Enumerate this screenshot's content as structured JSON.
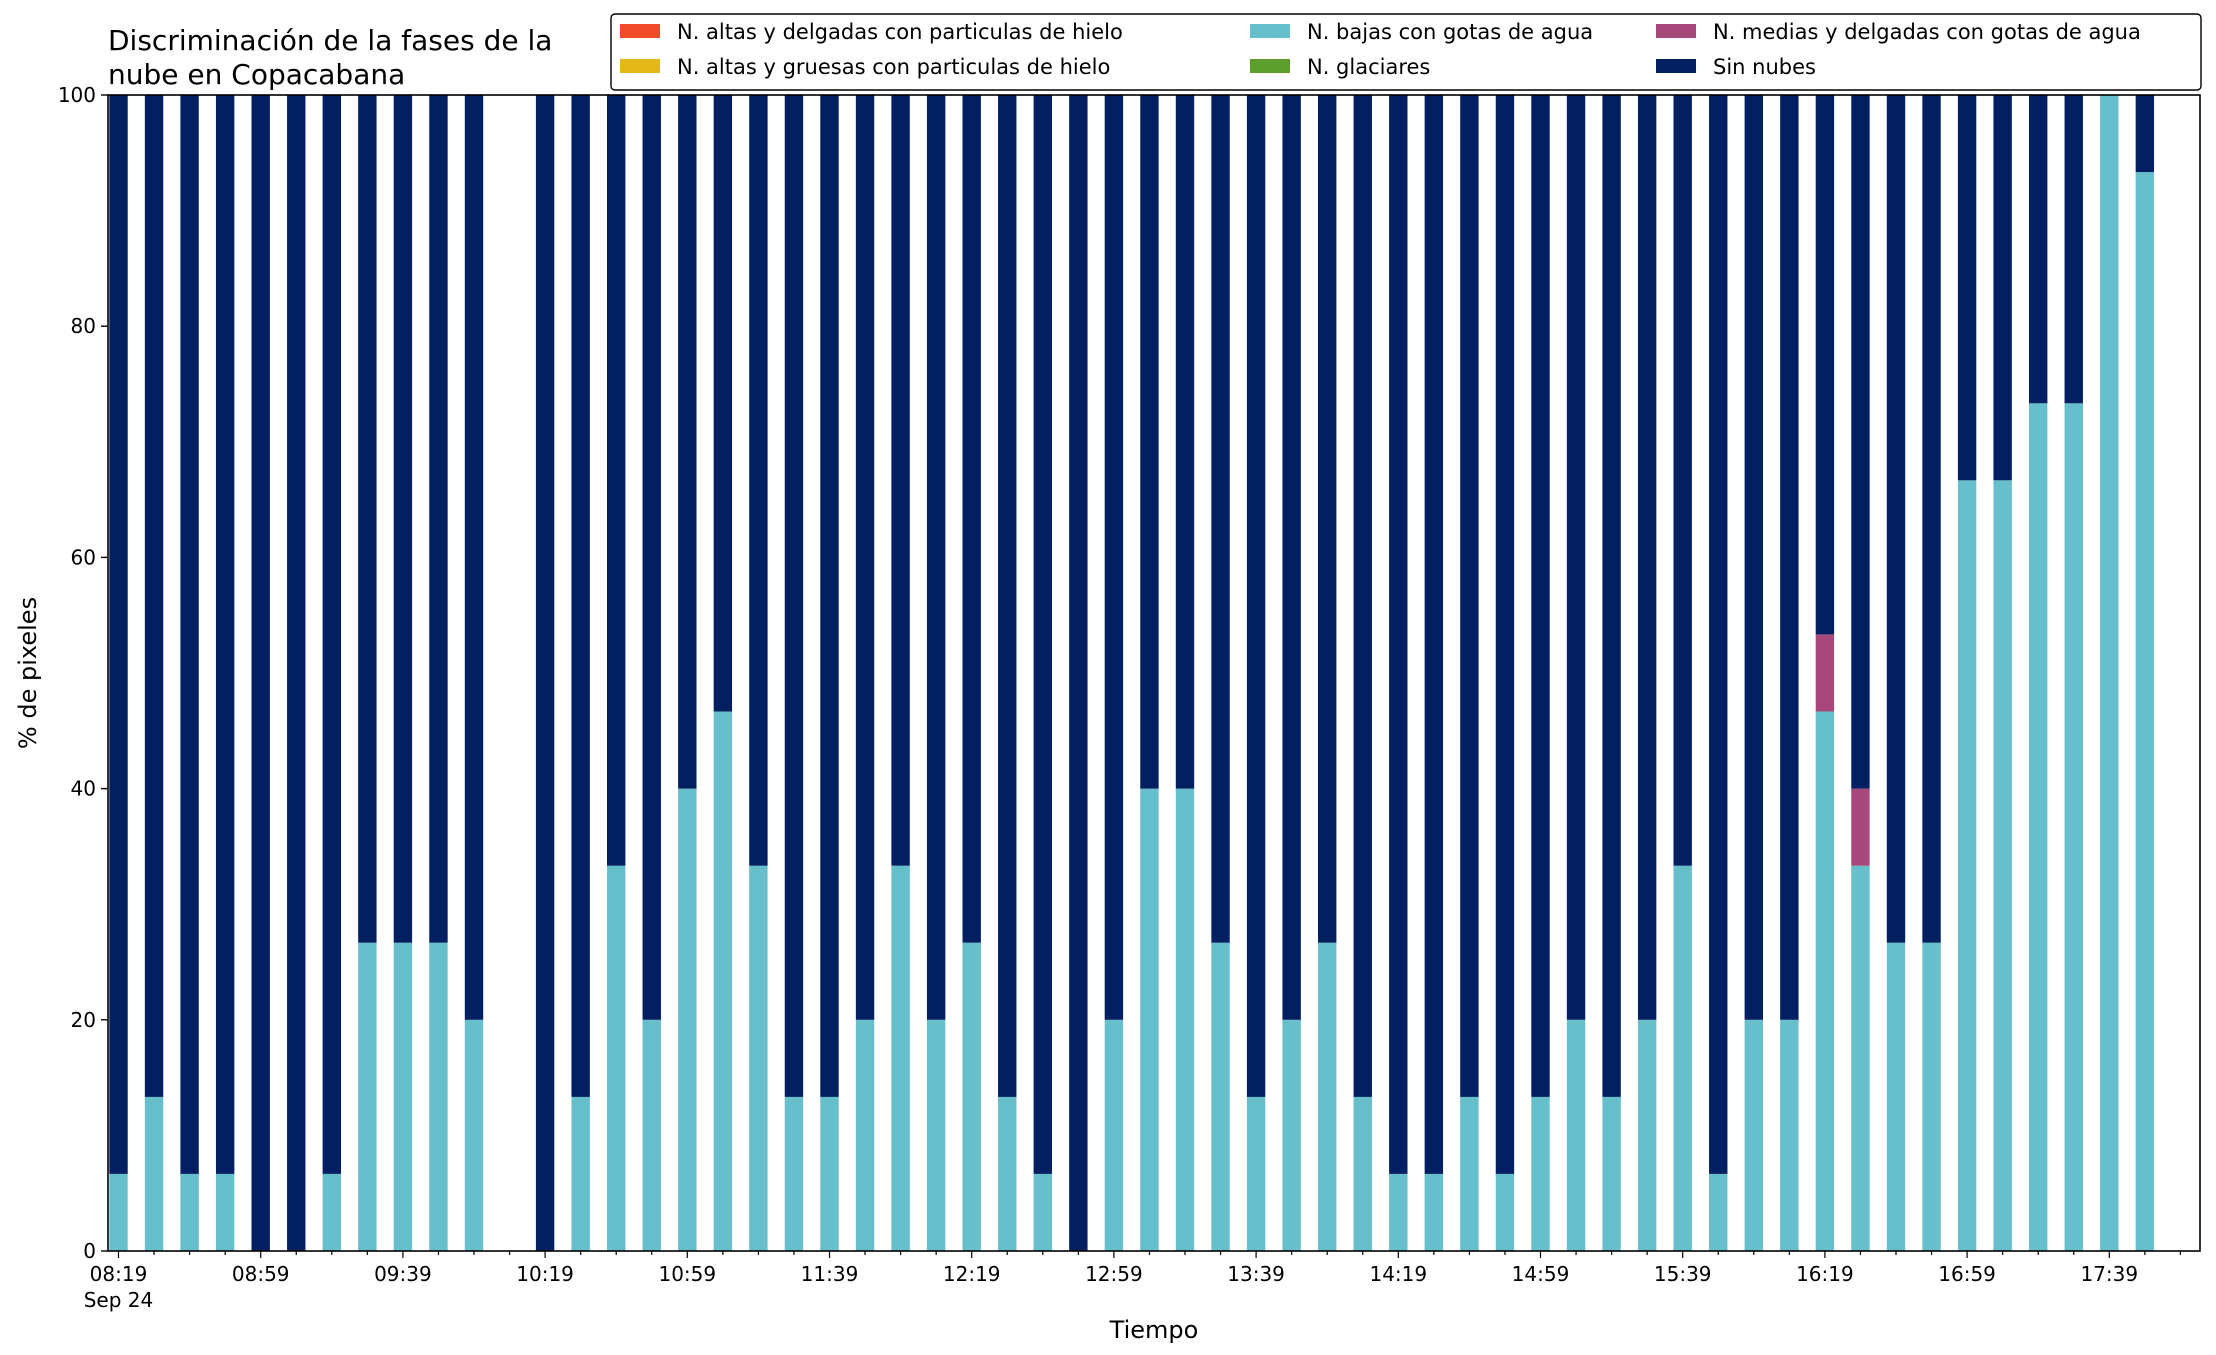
{
  "chart_data": {
    "type": "bar",
    "stacked": true,
    "title": "Discriminación de la fases de la\nnube en Copacabana",
    "xlabel": "Tiempo",
    "ylabel": "% de pixeles",
    "ylim": [
      0,
      100
    ],
    "yticks": [
      0,
      20,
      40,
      60,
      80,
      100
    ],
    "x_start": "08:19",
    "x_step_minutes": 10,
    "x_count": 58,
    "x_date_label": "Sep 24",
    "xtick_labels": [
      "08:19",
      "08:59",
      "09:39",
      "10:19",
      "10:59",
      "11:39",
      "12:19",
      "12:59",
      "13:39",
      "14:19",
      "14:59",
      "15:39",
      "16:19",
      "16:59",
      "17:39"
    ],
    "xtick_every": 4,
    "missing_times": [
      "10:09"
    ],
    "legend_position": "top-right",
    "series": [
      {
        "name": "N. altas y delgadas con particulas de hielo",
        "color": "#f04a2a",
        "values": [
          0,
          0,
          0,
          0,
          0,
          0,
          0,
          0,
          0,
          0,
          0,
          0,
          0,
          0,
          0,
          0,
          0,
          0,
          0,
          0,
          0,
          0,
          0,
          0,
          0,
          0,
          0,
          0,
          0,
          0,
          0,
          0,
          0,
          0,
          0,
          0,
          0,
          0,
          0,
          0,
          0,
          0,
          0,
          0,
          0,
          0,
          0,
          0,
          0,
          0,
          0,
          0,
          0,
          0,
          0,
          0,
          0,
          0
        ]
      },
      {
        "name": "N. altas y gruesas con particulas de hielo",
        "color": "#e5b81a",
        "values": [
          0,
          0,
          0,
          0,
          0,
          0,
          0,
          0,
          0,
          0,
          0,
          0,
          0,
          0,
          0,
          0,
          0,
          0,
          0,
          0,
          0,
          0,
          0,
          0,
          0,
          0,
          0,
          0,
          0,
          0,
          0,
          0,
          0,
          0,
          0,
          0,
          0,
          0,
          0,
          0,
          0,
          0,
          0,
          0,
          0,
          0,
          0,
          0,
          0,
          0,
          0,
          0,
          0,
          0,
          0,
          0,
          0,
          0
        ]
      },
      {
        "name": "N. bajas con gotas de agua",
        "color": "#66bfcb",
        "values": [
          6.67,
          13.33,
          6.67,
          6.67,
          0,
          0,
          6.67,
          26.67,
          26.67,
          26.67,
          20,
          0,
          0,
          13.33,
          33.33,
          20,
          40,
          46.67,
          33.33,
          13.33,
          13.33,
          20,
          33.33,
          20,
          26.67,
          13.33,
          6.67,
          0,
          20,
          40,
          40,
          26.67,
          13.33,
          20,
          26.67,
          13.33,
          6.67,
          6.67,
          13.33,
          6.67,
          13.33,
          20,
          13.33,
          20,
          33.33,
          6.67,
          20,
          20,
          46.67,
          33.33,
          26.67,
          26.67,
          66.67,
          66.67,
          73.33,
          73.33,
          100,
          93.33
        ]
      },
      {
        "name": "N. glaciares",
        "color": "#5e9e2e",
        "values": [
          0,
          0,
          0,
          0,
          0,
          0,
          0,
          0,
          0,
          0,
          0,
          0,
          0,
          0,
          0,
          0,
          0,
          0,
          0,
          0,
          0,
          0,
          0,
          0,
          0,
          0,
          0,
          0,
          0,
          0,
          0,
          0,
          0,
          0,
          0,
          0,
          0,
          0,
          0,
          0,
          0,
          0,
          0,
          0,
          0,
          0,
          0,
          0,
          0,
          0,
          0,
          0,
          0,
          0,
          0,
          0,
          0,
          0
        ]
      },
      {
        "name": "N. medias y delgadas con gotas de agua",
        "color": "#a6497a",
        "values": [
          0,
          0,
          0,
          0,
          0,
          0,
          0,
          0,
          0,
          0,
          0,
          0,
          0,
          0,
          0,
          0,
          0,
          0,
          0,
          0,
          0,
          0,
          0,
          0,
          0,
          0,
          0,
          0,
          0,
          0,
          0,
          0,
          0,
          0,
          0,
          0,
          0,
          0,
          0,
          0,
          0,
          0,
          0,
          0,
          0,
          0,
          0,
          0,
          6.67,
          6.67,
          0,
          0,
          0,
          0,
          0,
          0,
          0,
          0
        ]
      },
      {
        "name": "Sin nubes",
        "color": "#022061",
        "values": [
          93.33,
          86.67,
          93.33,
          93.33,
          100,
          100,
          93.33,
          73.33,
          73.33,
          73.33,
          80,
          0,
          100,
          86.67,
          66.67,
          80,
          60,
          53.33,
          66.67,
          86.67,
          86.67,
          80,
          66.67,
          80,
          73.33,
          86.67,
          93.33,
          100,
          80,
          60,
          60,
          73.33,
          86.67,
          80,
          73.33,
          86.67,
          93.33,
          93.33,
          86.67,
          93.33,
          86.67,
          80,
          86.67,
          80,
          66.67,
          93.33,
          80,
          80,
          46.67,
          60,
          73.33,
          73.33,
          33.33,
          33.33,
          26.67,
          26.67,
          0,
          6.67
        ]
      }
    ]
  }
}
